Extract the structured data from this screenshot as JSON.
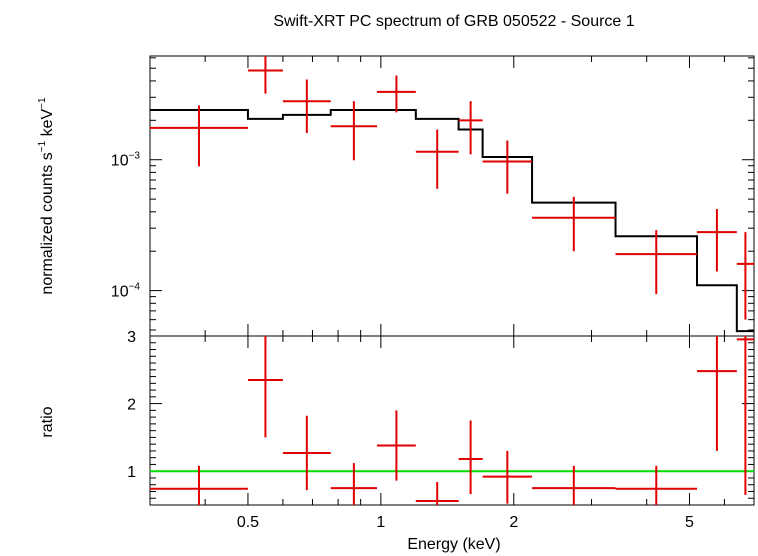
{
  "chart_data": [
    {
      "type": "line",
      "panel": "spectrum",
      "title": "Swift-XRT PC spectrum of GRB 050522 - Source 1",
      "ylabel_parts": [
        "normalized counts s",
        "−1",
        " keV",
        "−1"
      ],
      "xlabel": "Energy (keV)",
      "xscale": "log",
      "yscale": "log",
      "xlim": [
        0.3,
        7.0
      ],
      "ylim": [
        4.5e-05,
        0.0062
      ],
      "y_ticks": [
        {
          "value": 0.001,
          "base": "10",
          "exp": "−3"
        },
        {
          "value": 0.0001,
          "base": "10",
          "exp": "−4"
        }
      ],
      "colors": {
        "data": "#e00000",
        "model": "#000000"
      },
      "series": [
        {
          "kind": "data",
          "points": [
            {
              "xlo": 0.3,
              "xhi": 0.5,
              "y": 0.00175,
              "ylo": 0.00089,
              "yhi": 0.0026
            },
            {
              "xlo": 0.5,
              "xhi": 0.6,
              "y": 0.0048,
              "ylo": 0.0032,
              "yhi": 0.0062
            },
            {
              "xlo": 0.6,
              "xhi": 0.77,
              "y": 0.0028,
              "ylo": 0.0016,
              "yhi": 0.0041
            },
            {
              "xlo": 0.77,
              "xhi": 0.98,
              "y": 0.0018,
              "ylo": 0.00099,
              "yhi": 0.0028
            },
            {
              "xlo": 0.98,
              "xhi": 1.2,
              "y": 0.0033,
              "ylo": 0.0023,
              "yhi": 0.0044
            },
            {
              "xlo": 1.2,
              "xhi": 1.5,
              "y": 0.00115,
              "ylo": 0.0006,
              "yhi": 0.0017
            },
            {
              "xlo": 1.5,
              "xhi": 1.7,
              "y": 0.002,
              "ylo": 0.0011,
              "yhi": 0.0028
            },
            {
              "xlo": 1.7,
              "xhi": 2.2,
              "y": 0.00097,
              "ylo": 0.00055,
              "yhi": 0.0014
            },
            {
              "xlo": 2.2,
              "xhi": 3.4,
              "y": 0.00036,
              "ylo": 0.0002,
              "yhi": 0.00052
            },
            {
              "xlo": 3.4,
              "xhi": 5.2,
              "y": 0.00019,
              "ylo": 9.4e-05,
              "yhi": 0.00029
            },
            {
              "xlo": 5.2,
              "xhi": 6.4,
              "y": 0.00028,
              "ylo": 0.00014,
              "yhi": 0.00042
            },
            {
              "xlo": 6.4,
              "xhi": 7.0,
              "y": 0.00016,
              "ylo": 6e-05,
              "yhi": 0.00028
            }
          ]
        },
        {
          "kind": "model",
          "steps": [
            {
              "xlo": 0.3,
              "xhi": 0.5,
              "y": 0.0024
            },
            {
              "xlo": 0.5,
              "xhi": 0.6,
              "y": 0.00205
            },
            {
              "xlo": 0.6,
              "xhi": 0.77,
              "y": 0.0022
            },
            {
              "xlo": 0.77,
              "xhi": 0.98,
              "y": 0.0024
            },
            {
              "xlo": 0.98,
              "xhi": 1.2,
              "y": 0.0024
            },
            {
              "xlo": 1.2,
              "xhi": 1.5,
              "y": 0.00205
            },
            {
              "xlo": 1.5,
              "xhi": 1.7,
              "y": 0.0017
            },
            {
              "xlo": 1.7,
              "xhi": 2.2,
              "y": 0.00105
            },
            {
              "xlo": 2.2,
              "xhi": 3.4,
              "y": 0.00047
            },
            {
              "xlo": 3.4,
              "xhi": 5.2,
              "y": 0.00026
            },
            {
              "xlo": 5.2,
              "xhi": 6.4,
              "y": 0.00011
            },
            {
              "xlo": 6.4,
              "xhi": 7.0,
              "y": 4.9e-05
            }
          ]
        }
      ]
    },
    {
      "type": "line",
      "panel": "ratio",
      "ylabel": "ratio",
      "xlabel": "Energy (keV)",
      "xscale": "log",
      "xlim": [
        0.3,
        7.0
      ],
      "ylim": [
        0.5,
        3.0
      ],
      "y_ticks": [
        {
          "value": 1,
          "label": "1"
        },
        {
          "value": 2,
          "label": "2"
        },
        {
          "value": 3,
          "label": "3"
        }
      ],
      "x_ticks": [
        {
          "value": 0.5,
          "label": "0.5"
        },
        {
          "value": 1,
          "label": "1"
        },
        {
          "value": 2,
          "label": "2"
        },
        {
          "value": 5,
          "label": "5"
        }
      ],
      "reference_line": {
        "y": 1.0,
        "color": "#00dd00"
      },
      "colors": {
        "data": "#e00000"
      },
      "series": [
        {
          "kind": "data",
          "points": [
            {
              "xlo": 0.3,
              "xhi": 0.5,
              "y": 0.74,
              "ylo": 0.5,
              "yhi": 1.08
            },
            {
              "xlo": 0.5,
              "xhi": 0.6,
              "y": 2.35,
              "ylo": 1.5,
              "yhi": 3.0
            },
            {
              "xlo": 0.6,
              "xhi": 0.77,
              "y": 1.27,
              "ylo": 0.72,
              "yhi": 1.82
            },
            {
              "xlo": 0.77,
              "xhi": 0.98,
              "y": 0.75,
              "ylo": 0.4,
              "yhi": 1.12
            },
            {
              "xlo": 0.98,
              "xhi": 1.2,
              "y": 1.38,
              "ylo": 0.86,
              "yhi": 1.9
            },
            {
              "xlo": 1.2,
              "xhi": 1.5,
              "y": 0.56,
              "ylo": 0.3,
              "yhi": 0.84
            },
            {
              "xlo": 1.5,
              "xhi": 1.7,
              "y": 1.18,
              "ylo": 0.66,
              "yhi": 1.75
            },
            {
              "xlo": 1.7,
              "xhi": 2.2,
              "y": 0.92,
              "ylo": 0.52,
              "yhi": 1.3
            },
            {
              "xlo": 2.2,
              "xhi": 3.4,
              "y": 0.75,
              "ylo": 0.45,
              "yhi": 1.08
            },
            {
              "xlo": 3.4,
              "xhi": 5.2,
              "y": 0.74,
              "ylo": 0.37,
              "yhi": 1.08
            },
            {
              "xlo": 5.2,
              "xhi": 6.4,
              "y": 2.48,
              "ylo": 1.3,
              "yhi": 3.0
            },
            {
              "xlo": 6.4,
              "xhi": 7.0,
              "y": 2.95,
              "ylo": 0.65,
              "yhi": 3.0
            }
          ]
        }
      ]
    }
  ]
}
